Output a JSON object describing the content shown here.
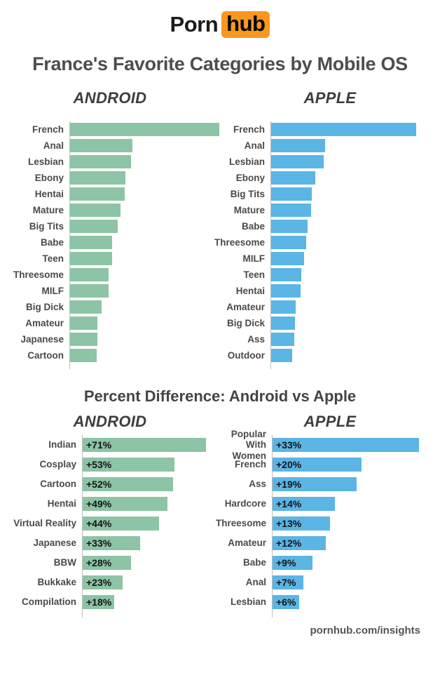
{
  "header": {
    "logo": {
      "part1": "Porn",
      "part2": "hub",
      "accent_color": "#f7971d"
    },
    "title": "France's Favorite Categories by Mobile OS"
  },
  "section2": {
    "title": "Percent Difference: Android vs Apple"
  },
  "footer": {
    "site": "pornhub.com/insights"
  },
  "colors": {
    "android_green": "#8cc4a5",
    "apple_blue": "#5bb5e5",
    "text_gray": "#4a4a4a",
    "axis_gray": "#bdbdbd"
  },
  "chart_data": [
    {
      "id": "top-android",
      "type": "bar",
      "orientation": "horizontal",
      "title": "ANDROID",
      "bar_color": "#8cc4a5",
      "note": "relative popularity, no numeric axis shown; values normalized to top category = 100",
      "categories": [
        "French",
        "Anal",
        "Lesbian",
        "Ebony",
        "Hentai",
        "Mature",
        "Big Tits",
        "Babe",
        "Teen",
        "Threesome",
        "MILF",
        "Big Dick",
        "Amateur",
        "Japanese",
        "Cartoon"
      ],
      "values": [
        100,
        42,
        41,
        37,
        36.5,
        34,
        32,
        28,
        28,
        26,
        26,
        21,
        18.5,
        18.5,
        18
      ]
    },
    {
      "id": "top-apple",
      "type": "bar",
      "orientation": "horizontal",
      "title": "APPLE",
      "bar_color": "#5bb5e5",
      "note": "relative popularity, no numeric axis shown; values normalized to top category = 100",
      "categories": [
        "French",
        "Anal",
        "Lesbian",
        "Ebony",
        "Big Tits",
        "Mature",
        "Babe",
        "Threesome",
        "MILF",
        "Teen",
        "Hentai",
        "Amateur",
        "Big Dick",
        "Ass",
        "Outdoor"
      ],
      "values": [
        100,
        37,
        36,
        30.5,
        28,
        27.5,
        25,
        24,
        22.5,
        21,
        20.5,
        17,
        16.5,
        16,
        14.5
      ]
    },
    {
      "id": "percent-diff-android",
      "type": "bar",
      "orientation": "horizontal",
      "title": "ANDROID",
      "bar_color": "#8cc4a5",
      "unit": "percent difference vs Apple",
      "categories": [
        "Indian",
        "Cosplay",
        "Cartoon",
        "Hentai",
        "Virtual Reality",
        "Japanese",
        "BBW",
        "Bukkake",
        "Compilation"
      ],
      "values": [
        71,
        53,
        52,
        49,
        44,
        33,
        28,
        23,
        18
      ],
      "value_labels": [
        "+71%",
        "+53%",
        "+52%",
        "+49%",
        "+44%",
        "+33%",
        "+28%",
        "+23%",
        "+18%"
      ]
    },
    {
      "id": "percent-diff-apple",
      "type": "bar",
      "orientation": "horizontal",
      "title": "APPLE",
      "bar_color": "#5bb5e5",
      "unit": "percent difference vs Android",
      "categories": [
        "Popular With Women",
        "French",
        "Ass",
        "Hardcore",
        "Threesome",
        "Amateur",
        "Babe",
        "Anal",
        "Lesbian"
      ],
      "values": [
        33,
        20,
        19,
        14,
        13,
        12,
        9,
        7,
        6
      ],
      "value_labels": [
        "+33%",
        "+20%",
        "+19%",
        "+14%",
        "+13%",
        "+12%",
        "+9%",
        "+7%",
        "+6%"
      ]
    }
  ]
}
